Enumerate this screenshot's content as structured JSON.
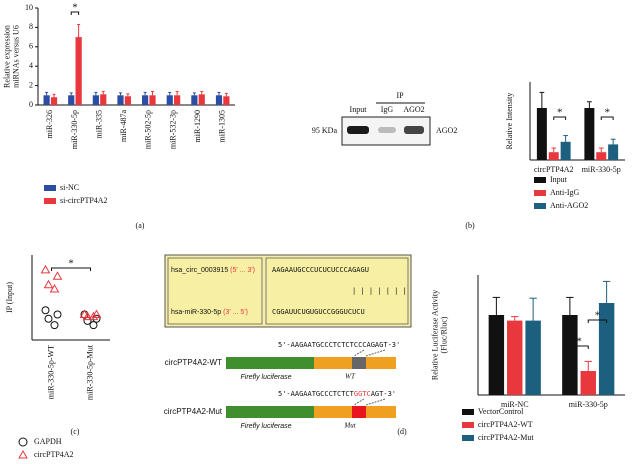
{
  "chart_data": [
    {
      "type": "bar",
      "ylabel": [
        "Relative expression",
        "miRNAs versus U6"
      ],
      "categories": [
        "miR-326",
        "miR-330-5p",
        "miR-335",
        "miR-487a",
        "miR-502-5p",
        "miR-532-3p",
        "miR-1290",
        "miR-1305"
      ],
      "series": [
        {
          "name": "si-NC",
          "color": "#2b4ea2",
          "values": [
            1.0,
            1.0,
            1.0,
            1.0,
            1.0,
            1.0,
            1.0,
            1.0
          ],
          "errors": [
            0.3,
            0.25,
            0.3,
            0.25,
            0.3,
            0.3,
            0.25,
            0.3
          ]
        },
        {
          "name": "si-circPTP4A2",
          "color": "#e8383d",
          "values": [
            0.8,
            7.0,
            1.1,
            0.9,
            1.0,
            1.0,
            1.1,
            0.9
          ],
          "errors": [
            0.3,
            1.3,
            0.3,
            0.25,
            0.4,
            0.4,
            0.3,
            0.3
          ]
        }
      ],
      "ylim": [
        0,
        10
      ],
      "yticks": [
        0,
        2,
        4,
        6,
        8,
        10
      ],
      "annotations": [
        "*"
      ]
    },
    {
      "type": "bar",
      "ylabel": [
        "Relative Intensity"
      ],
      "categories": [
        "circPTP4A2",
        "miR-330-5p"
      ],
      "series": [
        {
          "name": "Input",
          "color": "#111111",
          "values": [
            1.0,
            1.0
          ],
          "errors": [
            0.3,
            0.12
          ]
        },
        {
          "name": "Anti-IgG",
          "color": "#e8383d",
          "values": [
            0.15,
            0.15
          ],
          "errors": [
            0.08,
            0.08
          ]
        },
        {
          "name": "Anti-AGO2",
          "color": "#1c5f7e",
          "values": [
            0.35,
            0.3
          ],
          "errors": [
            0.12,
            0.1
          ]
        }
      ],
      "ylim": [
        0,
        1.5
      ],
      "annotations": [
        "*",
        "*"
      ]
    },
    {
      "type": "scatter",
      "ylabel": [
        "IP (Input)"
      ],
      "categories": [
        "miR-330-5p-WT",
        "miR-330-5p-Mut"
      ],
      "series": [
        {
          "name": "GAPDH",
          "color": "#111111",
          "marker": "circle",
          "values": [
            [
              0.14,
              0.12,
              0.1,
              0.07
            ],
            [
              0.12,
              0.1,
              0.09,
              0.07
            ]
          ]
        },
        {
          "name": "circPTP4A2",
          "color": "#e8383d",
          "marker": "triangle",
          "values": [
            [
              0.33,
              0.3,
              0.26,
              0.24
            ],
            [
              0.12,
              0.12,
              0.11,
              0.11
            ]
          ]
        }
      ],
      "ylim": [
        0,
        0.4
      ],
      "annotations": [
        "*"
      ]
    },
    {
      "type": "bar",
      "ylabel": [
        "Relative Luciferase Activity",
        "(Fluc/Rluc)"
      ],
      "categories": [
        "miR-NC",
        "miR-330-5p"
      ],
      "series": [
        {
          "name": "VectorControl",
          "color": "#111111",
          "values": [
            1.0,
            1.0
          ],
          "errors": [
            0.22,
            0.22
          ]
        },
        {
          "name": "circPTP4A2-WT",
          "color": "#e8383d",
          "values": [
            0.93,
            0.3
          ],
          "errors": [
            0.05,
            0.12
          ]
        },
        {
          "name": "circPTP4A2-Mut",
          "color": "#1c5f7e",
          "values": [
            0.93,
            1.15
          ],
          "errors": [
            0.28,
            0.27
          ]
        }
      ],
      "ylim": [
        0,
        1.5
      ],
      "annotations": [
        "*",
        "*"
      ]
    }
  ],
  "figure": {
    "panel_labels": [
      "(a)",
      "(b)",
      "(c)",
      "(d)"
    ],
    "blot": {
      "ip": "IP",
      "lanes": [
        "Input",
        "IgG",
        "AGO2"
      ],
      "marker": "95 KDa",
      "band": "AGO2"
    },
    "binding": {
      "circ_name": "hsa_circ_0003915",
      "circ_dir": "(5' ... 3')",
      "mir_name": "hsa-miR-330-5p",
      "mir_dir": "(3' ... 5')",
      "circ_seq": "AAGAAUGCCCUCUCUCCCAGAGU",
      "pairs": "| | | | | | |",
      "mir_seq": "CGGAUUCUGUGUCCGGGUCUCU"
    },
    "constructs": [
      {
        "name": "circPTP4A2-WT",
        "seq": [
          "5'-AAGAATGCCCTCTCTCCCAGAGT-3'"
        ],
        "luciferase": "Firefly luciferase",
        "site": "WT"
      },
      {
        "name": "circPTP4A2-Mut",
        "seq": [
          "5'-AAGAATGCCCTCTCT",
          "GGTC",
          "AGT-3'"
        ],
        "luciferase": "Firefly luciferase",
        "site": "Mut"
      }
    ]
  }
}
